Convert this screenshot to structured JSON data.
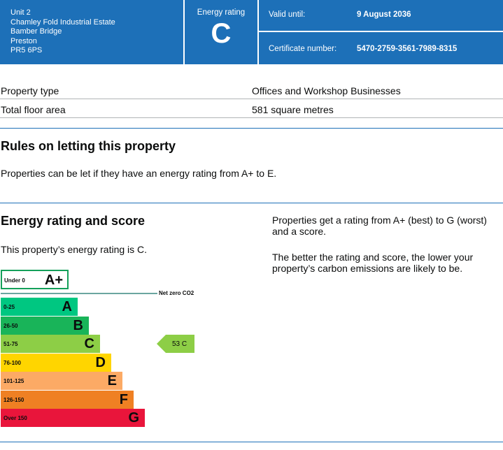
{
  "header": {
    "address_lines": [
      "Unit 2",
      "Chamley Fold Industrial Estate",
      "Bamber Bridge",
      "Preston",
      "PR5 6PS"
    ],
    "rating_label": "Energy rating",
    "rating_letter": "C",
    "valid_until_label": "Valid until:",
    "valid_until_value": "9 August 2036",
    "certificate_label": "Certificate number:",
    "certificate_value": "5470-2759-3561-7989-8315",
    "color": "#1d70b8"
  },
  "property": {
    "rows": [
      {
        "label": "Property type",
        "value": "Offices and Workshop Businesses"
      },
      {
        "label": "Total floor area",
        "value": "581 square metres"
      }
    ]
  },
  "letting": {
    "heading": "Rules on letting this property",
    "text": "Properties can be let if they have an energy rating from A+ to E."
  },
  "energy": {
    "heading": "Energy rating and score",
    "rating_text": "This property’s energy rating is C.",
    "info_1": "Properties get a rating from A+ (best) to G (worst) and a score.",
    "info_2": "The better the rating and score, the lower your property’s carbon emissions are likely to be."
  },
  "chart_data": {
    "type": "bar",
    "title": "",
    "bands": [
      {
        "range": "Under 0",
        "letter": "A+",
        "color": "#ffffff",
        "border": "#14a05a"
      },
      {
        "range": "0-25",
        "letter": "A",
        "color": "#00c781"
      },
      {
        "range": "26-50",
        "letter": "B",
        "color": "#19b459"
      },
      {
        "range": "51-75",
        "letter": "C",
        "color": "#8dce46"
      },
      {
        "range": "76-100",
        "letter": "D",
        "color": "#ffd500"
      },
      {
        "range": "101-125",
        "letter": "E",
        "color": "#fcaa65"
      },
      {
        "range": "126-150",
        "letter": "F",
        "color": "#ef8023"
      },
      {
        "range": "Over 150",
        "letter": "G",
        "color": "#e9153b"
      }
    ],
    "net_zero_label": "Net zero CO2",
    "current": {
      "score": 53,
      "letter": "C",
      "label": "53  C",
      "color": "#8dce46"
    }
  }
}
